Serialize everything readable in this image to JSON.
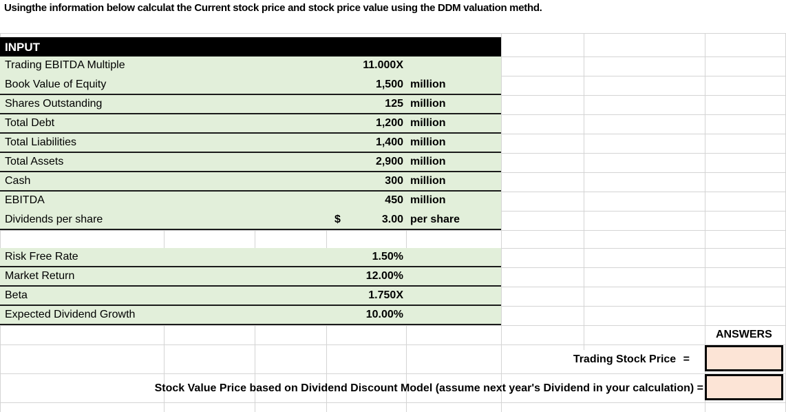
{
  "title": "Usingthe information below calculat the Current stock price and stock price value using the DDM valuation methd.",
  "input_section": {
    "header": "INPUT",
    "rows": [
      {
        "label": "Trading EBITDA Multiple",
        "currency": "",
        "value": "11.000X",
        "unit": ""
      },
      {
        "label": "Book Value of Equity",
        "currency": "",
        "value": "1,500",
        "unit": "million"
      },
      {
        "label": "Shares Outstanding",
        "currency": "",
        "value": "125",
        "unit": "million"
      },
      {
        "label": "Total Debt",
        "currency": "",
        "value": "1,200",
        "unit": "million"
      },
      {
        "label": "Total Liabilities",
        "currency": "",
        "value": "1,400",
        "unit": "million"
      },
      {
        "label": "Total Assets",
        "currency": "",
        "value": "2,900",
        "unit": "million"
      },
      {
        "label": "Cash",
        "currency": "",
        "value": "300",
        "unit": "million"
      },
      {
        "label": "EBITDA",
        "currency": "",
        "value": "450",
        "unit": "million"
      },
      {
        "label": "Dividends per share",
        "currency": "$",
        "value": "3.00",
        "unit": "per share"
      }
    ]
  },
  "rates_section": {
    "rows": [
      {
        "label": "Risk Free Rate",
        "value": "1.50%"
      },
      {
        "label": "Market Return",
        "value": "12.00%"
      },
      {
        "label": "Beta",
        "value": "1.750X"
      },
      {
        "label": "Expected Dividend Growth",
        "value": "10.00%"
      }
    ]
  },
  "answers": {
    "header": "ANSWERS",
    "questions": [
      {
        "label": "Trading Stock Price",
        "equals": "=",
        "answer": ""
      },
      {
        "label": "Stock Value Price based on Dividend Discount Model (assume next year's Dividend in your calculation)",
        "equals": "=",
        "answer": ""
      }
    ]
  },
  "colors": {
    "input_fill": "#e2efda",
    "header_fill": "#000000",
    "answer_fill": "#fce4d6",
    "gridline": "#d4d4d4"
  }
}
